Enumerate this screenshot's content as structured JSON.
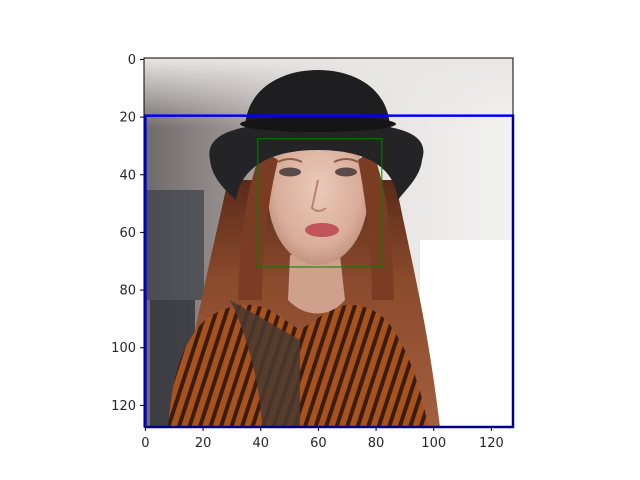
{
  "chart_data": {
    "type": "image",
    "title": "",
    "xlabel": "",
    "ylabel": "",
    "image_size": [
      128,
      128
    ],
    "xlim": [
      -0.5,
      127.5
    ],
    "ylim": [
      127.5,
      -0.5
    ],
    "y_inverted": true,
    "xticks": [
      0,
      20,
      40,
      60,
      80,
      100,
      120
    ],
    "yticks": [
      0,
      20,
      40,
      60,
      80,
      100,
      120
    ],
    "xtick_labels": [
      "0",
      "20",
      "40",
      "60",
      "80",
      "100",
      "120"
    ],
    "ytick_labels": [
      "0",
      "20",
      "40",
      "60",
      "80",
      "100",
      "120"
    ],
    "image_description": "Photo of a woman with long auburn hair wearing a black bowler hat and a striped orange top",
    "boxes": [
      {
        "name": "blue-box",
        "color": "#0000ff",
        "x0": 0,
        "y0": 19.5,
        "x1": 127.5,
        "y1": 127.5
      },
      {
        "name": "green-box",
        "color": "#008000",
        "x0": 39,
        "y0": 27.5,
        "x1": 82,
        "y1": 72
      }
    ],
    "grid": false
  }
}
